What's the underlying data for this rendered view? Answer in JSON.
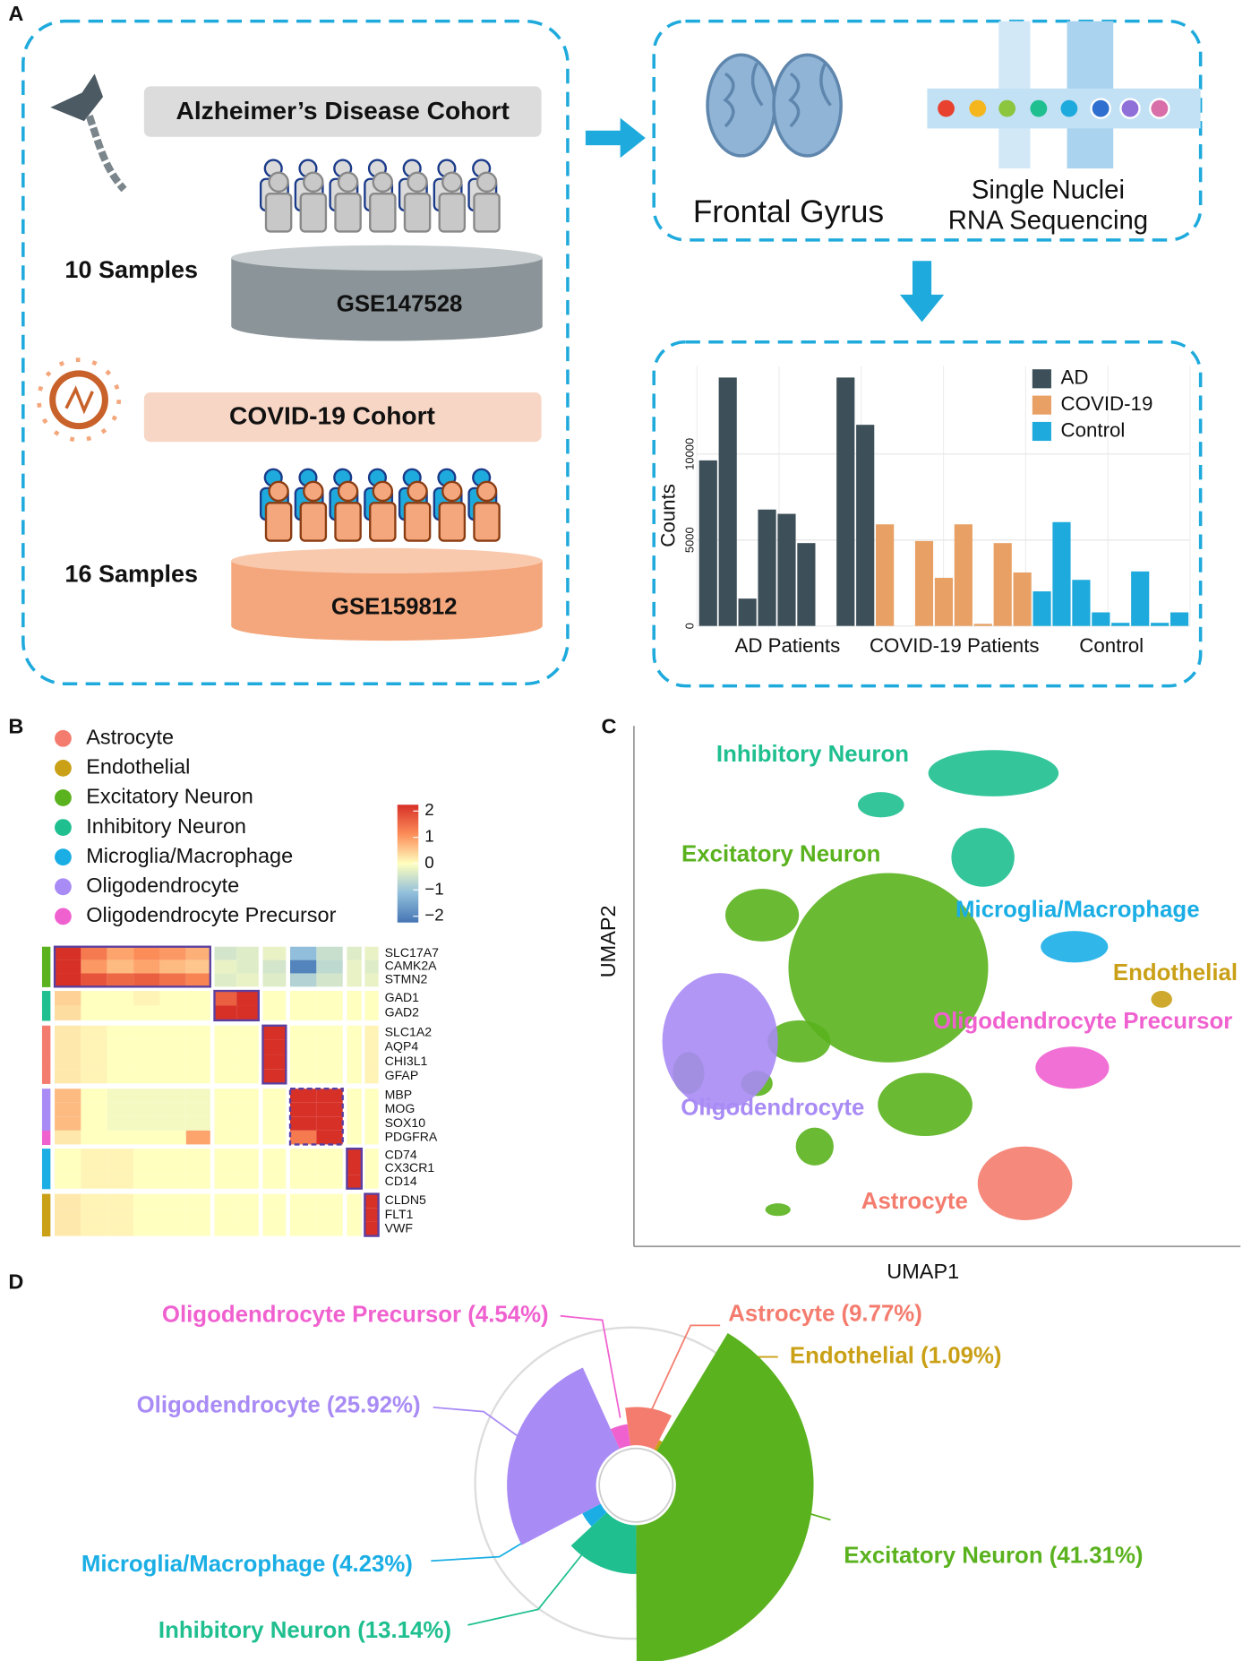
{
  "panel_labels": [
    "A",
    "B",
    "C",
    "D"
  ],
  "panel_a": {
    "ad_cohort": {
      "title": "Alzheimer’s Disease Cohort",
      "samples": "10 Samples",
      "dataset": "GSE147528"
    },
    "covid_cohort": {
      "title": "COVID-19 Cohort",
      "samples": "16 Samples",
      "dataset": "GSE159812"
    },
    "tissue": "Frontal Gyrus",
    "method": [
      "Single Nuclei",
      "RNA Sequencing"
    ]
  },
  "panel_b": {
    "legend": [
      {
        "name": "Astrocyte",
        "color": "#f47c6e"
      },
      {
        "name": "Endothelial",
        "color": "#c9a016"
      },
      {
        "name": "Excitatory Neuron",
        "color": "#5ab21e"
      },
      {
        "name": "Inhibitory Neuron",
        "color": "#1fbf8f"
      },
      {
        "name": "Microglia/Macrophage",
        "color": "#1aaee5"
      },
      {
        "name": "Oligodendrocyte",
        "color": "#a98bf5"
      },
      {
        "name": "Oligodendrocyte Precursor",
        "color": "#f061d0"
      }
    ]
  },
  "panel_c": {
    "x_label": "UMAP1",
    "y_label": "UMAP2",
    "clusters": [
      "Astrocyte",
      "Endothelial",
      "Excitatory Neuron",
      "Inhibitory Neuron",
      "Microglia/Macrophage",
      "Oligodendrocyte",
      "Oligodendrocyte Precursor"
    ]
  },
  "chart_data": [
    {
      "type": "bar",
      "ylabel": "Counts",
      "ylim": [
        0,
        14500
      ],
      "yticks": [
        0,
        5000,
        10000
      ],
      "grid": true,
      "legend": "top-right",
      "categories": [
        null,
        null,
        null,
        null,
        null,
        null,
        null,
        null,
        null,
        null,
        null,
        null,
        null,
        null,
        null,
        null,
        null,
        null,
        null,
        null,
        null,
        null,
        null,
        null,
        null
      ],
      "group_labels": [
        "AD Patients",
        "COVID-19 Patients",
        "Control"
      ],
      "series": [
        {
          "name": "AD",
          "color": "#3d4f58",
          "values": [
            9630,
            14450,
            1590,
            6770,
            6520,
            4820,
            0,
            14450,
            11700,
            null,
            null,
            null,
            null,
            null,
            null,
            null,
            null,
            null,
            null,
            null,
            null,
            null,
            null,
            null,
            null
          ]
        },
        {
          "name": "COVID-19",
          "color": "#e8a064",
          "values": [
            null,
            null,
            null,
            null,
            null,
            null,
            null,
            null,
            null,
            5910,
            0,
            4940,
            2800,
            5910,
            120,
            4820,
            3110,
            null,
            null,
            null,
            null,
            null,
            null,
            null,
            null
          ]
        },
        {
          "name": "Control",
          "color": "#1eaadc",
          "values": [
            null,
            null,
            null,
            null,
            null,
            null,
            null,
            null,
            null,
            null,
            null,
            null,
            null,
            null,
            null,
            null,
            null,
            2010,
            6040,
            2680,
            790,
            180,
            3170,
            180,
            790
          ]
        }
      ]
    },
    {
      "type": "heatmap",
      "rows": [
        "SLC17A7",
        "CAMK2A",
        "STMN2",
        "GAD1",
        "GAD2",
        "SLC1A2",
        "AQP4",
        "CHI3L1",
        "GFAP",
        "MBP",
        "MOG",
        "SOX10",
        "PDGFRA",
        "CD74",
        "CX3CR1",
        "CD14",
        "CLDN5",
        "FLT1",
        "VWF"
      ],
      "row_colors": [
        "#5ab21e",
        "#5ab21e",
        "#5ab21e",
        "#1fbf8f",
        "#1fbf8f",
        "#f47c6e",
        "#f47c6e",
        "#f47c6e",
        "#f47c6e",
        "#a98bf5",
        "#a98bf5",
        "#a98bf5",
        "#f061d0",
        "#1aaee5",
        "#1aaee5",
        "#1aaee5",
        "#c9a016",
        "#c9a016",
        "#c9a016"
      ],
      "zlim": [
        -2,
        2
      ],
      "zticks": [
        2,
        1,
        0,
        {
          "value": -1,
          "label": "−1"
        },
        {
          "value": -2,
          "label": "−2"
        }
      ],
      "colors": [
        "#4575b4",
        "#91bfdb",
        "#ffffbf",
        "#fc8d59",
        "#d73027"
      ],
      "values": [
        [
          2,
          1.2,
          0.8,
          1,
          0.9,
          0.7,
          -0.4,
          -0.3,
          -0.2,
          -1,
          -0.5,
          -0.3,
          -0.2
        ],
        [
          2,
          0.9,
          0.6,
          0.8,
          0.6,
          0.5,
          -0.2,
          -0.3,
          -0.4,
          -1.8,
          -0.6,
          -0.2,
          -0.3
        ],
        [
          2,
          1.6,
          1.4,
          1.5,
          1.3,
          1.1,
          -0.3,
          -0.2,
          -0.3,
          -0.7,
          -0.4,
          -0.2,
          -0.2
        ],
        [
          0.4,
          0,
          0,
          0.1,
          0,
          0,
          1.5,
          2,
          0,
          0,
          0,
          0,
          0
        ],
        [
          0.3,
          0,
          0,
          0,
          0,
          0,
          2,
          2,
          0,
          0,
          0,
          0,
          0
        ],
        [
          0.2,
          0.1,
          0,
          0,
          0,
          0,
          0,
          0,
          2,
          0,
          0,
          0,
          0.1
        ],
        [
          0.2,
          0.1,
          0,
          0,
          0,
          0,
          0,
          0,
          2,
          0,
          0,
          0,
          0.1
        ],
        [
          0.2,
          0.1,
          0,
          0,
          0,
          0,
          0,
          0,
          2,
          0,
          0,
          0,
          0.1
        ],
        [
          0.2,
          0.1,
          0,
          0,
          0,
          0,
          0,
          0,
          2,
          0,
          0,
          0,
          0.1
        ],
        [
          0.6,
          0,
          -0.1,
          -0.1,
          -0.1,
          -0.1,
          0,
          0,
          0,
          2,
          2,
          0,
          0
        ],
        [
          0.6,
          0,
          -0.1,
          -0.1,
          -0.1,
          -0.1,
          0,
          0,
          0,
          2,
          2,
          0,
          0
        ],
        [
          0.6,
          0,
          -0.1,
          -0.1,
          -0.1,
          -0.1,
          0,
          0,
          0,
          2,
          2,
          0,
          0
        ],
        [
          0.2,
          0,
          0,
          0,
          0,
          0.8,
          0,
          0,
          0,
          1.2,
          2,
          0,
          0
        ],
        [
          0,
          0.1,
          0.1,
          0,
          0,
          0,
          0,
          0,
          0,
          0,
          0,
          2,
          0
        ],
        [
          0,
          0.1,
          0.1,
          0,
          0,
          0,
          0,
          0,
          0,
          0,
          0,
          2,
          0
        ],
        [
          0,
          0.1,
          0.1,
          0,
          0,
          0,
          0,
          0,
          0,
          0,
          0,
          2,
          0
        ],
        [
          0.2,
          0.1,
          0.1,
          0,
          0,
          0,
          0,
          0,
          0,
          0,
          0,
          0,
          2
        ],
        [
          0.2,
          0.1,
          0.1,
          0,
          0,
          0,
          0,
          0,
          0,
          0,
          0,
          0,
          2
        ],
        [
          0.2,
          0.1,
          0.1,
          0,
          0,
          0,
          0,
          0,
          0,
          0,
          0,
          0,
          2
        ]
      ]
    },
    {
      "type": "rose",
      "values": [
        9.77,
        1.09,
        41.31,
        13.14,
        4.23,
        25.92,
        4.54
      ],
      "value_labels": [
        "Astrocyte (9.77%)",
        "Endothelial (1.09%)",
        "Excitatory Neuron (41.31%)",
        "Inhibitory Neuron (13.14%)",
        "Microglia/Macrophage (4.23%)",
        "Oligodendrocyte (25.92%)",
        "Oligodendrocyte Precursor (4.54%)"
      ],
      "colors": [
        "#f47c6e",
        "#c9a016",
        "#5ab21e",
        "#1fbf8f",
        "#1aaee5",
        "#a98bf5",
        "#f061d0"
      ]
    }
  ]
}
